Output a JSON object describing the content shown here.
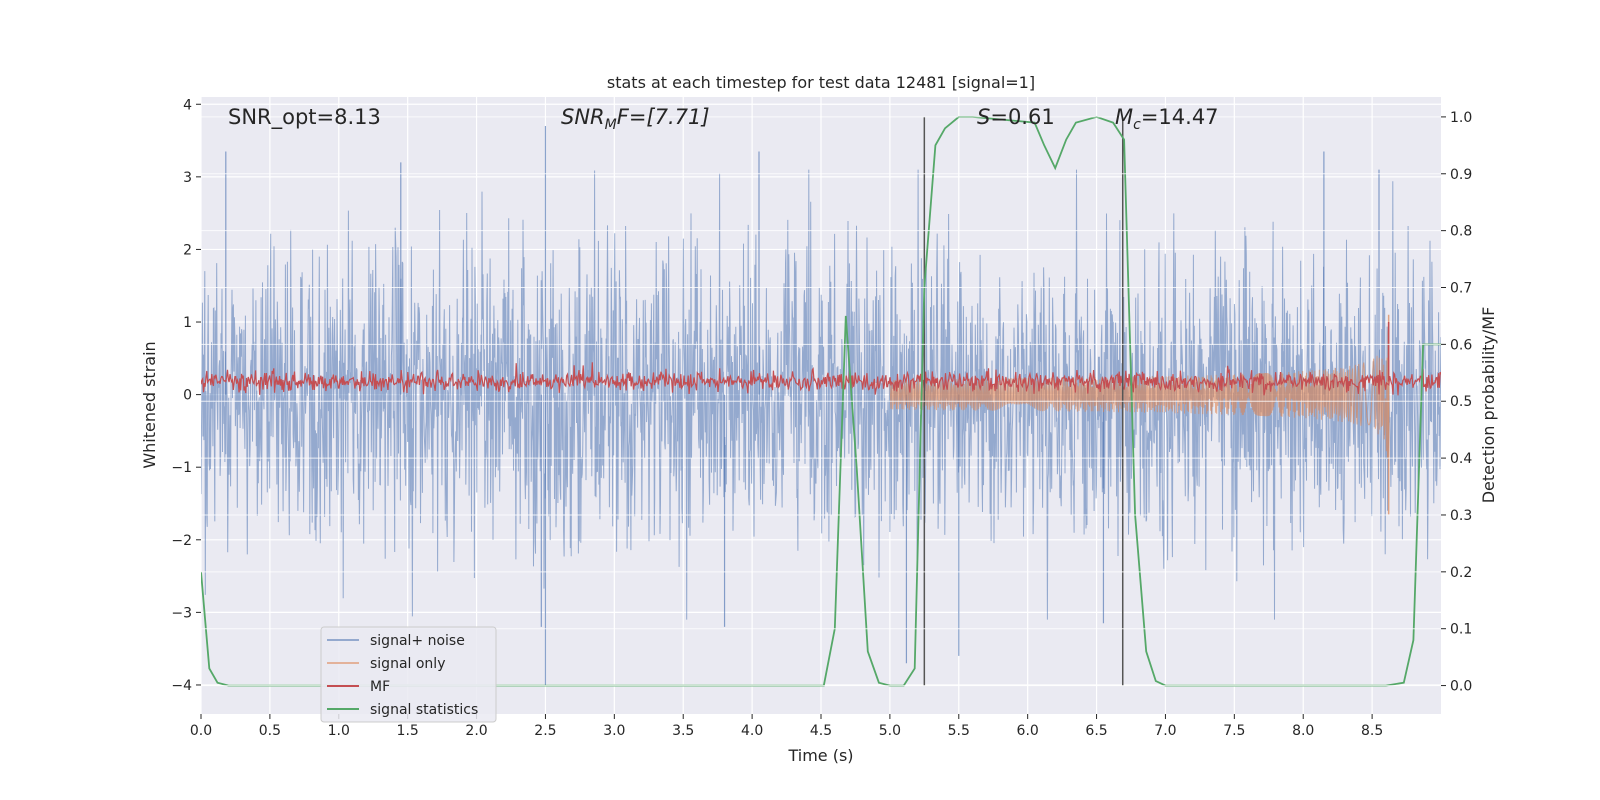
{
  "chart_data": {
    "type": "line",
    "title": "stats at each timestep for test data 12481 [signal=1]",
    "xlabel": "Time (s)",
    "ylabel": "Whitened strain",
    "y2label": "Detection probability/MF",
    "xlim": [
      0.0,
      9.0
    ],
    "ylim": [
      -4.4,
      4.1
    ],
    "y2lim": [
      -0.05,
      1.035
    ],
    "xticks": [
      0.0,
      0.5,
      1.0,
      1.5,
      2.0,
      2.5,
      3.0,
      3.5,
      4.0,
      4.5,
      5.0,
      5.5,
      6.0,
      6.5,
      7.0,
      7.5,
      8.0,
      8.5
    ],
    "xtick_labels": [
      "0.0",
      "0.5",
      "1.0",
      "1.5",
      "2.0",
      "2.5",
      "3.0",
      "3.5",
      "4.0",
      "4.5",
      "5.0",
      "5.5",
      "6.0",
      "6.5",
      "7.0",
      "7.5",
      "8.0",
      "8.5"
    ],
    "yticks": [
      4,
      3,
      2,
      1,
      0,
      -1,
      -2,
      -3,
      -4
    ],
    "ytick_labels": [
      "4",
      "3",
      "2",
      "1",
      "0",
      "−1",
      "−2",
      "−3",
      "−4"
    ],
    "y2ticks": [
      1.0,
      0.9,
      0.8,
      0.7,
      0.6,
      0.5,
      0.4,
      0.3,
      0.2,
      0.1,
      0.0
    ],
    "y2tick_labels": [
      "1.0",
      "0.9",
      "0.8",
      "0.7",
      "0.6",
      "0.5",
      "0.4",
      "0.3",
      "0.2",
      "0.1",
      "0.0"
    ],
    "annotations": {
      "snr_opt": "SNR_opt=8.13",
      "snr_mf_main": "SNR",
      "snr_mf_sub": "M",
      "snr_mf_tail": "F=[7.71]",
      "s_main": "S",
      "s_tail": "=0.61",
      "mc_main": "M",
      "mc_sub": "c",
      "mc_tail": "=14.47"
    },
    "vlines_x": [
      5.25,
      6.69
    ],
    "series": [
      {
        "name": "signal+ noise",
        "axis": "left",
        "color": "#4c72b0",
        "description": "whitened noisy strain, roughly Gaussian noise with std about 1 across 0–9 s",
        "envelope": {
          "x_range": [
            0.0,
            9.0
          ],
          "mean": 0.0,
          "std": 1.0
        },
        "spikes": [
          {
            "x": 0.18,
            "y": 3.35
          },
          {
            "x": 1.45,
            "y": 3.2
          },
          {
            "x": 2.5,
            "y": 3.7
          },
          {
            "x": 2.5,
            "y": -4.0
          },
          {
            "x": 2.47,
            "y": -3.2
          },
          {
            "x": 3.8,
            "y": -3.2
          },
          {
            "x": 4.05,
            "y": 3.35
          },
          {
            "x": 5.12,
            "y": -3.7
          },
          {
            "x": 5.5,
            "y": -3.6
          },
          {
            "x": 6.55,
            "y": -3.15
          },
          {
            "x": 8.15,
            "y": 3.35
          },
          {
            "x": 8.55,
            "y": 3.1
          }
        ]
      },
      {
        "name": "signal only",
        "axis": "left",
        "color": "#dd8452",
        "description": "chirp waveform growing from ~0 to peak near t=8.62 s",
        "chirp": {
          "t_merge": 8.62,
          "peak_amplitude": 1.15,
          "start": 5.0
        }
      },
      {
        "name": "MF",
        "axis": "left",
        "color": "#c44e52",
        "description": "matched filter output band centred near 0.2",
        "band": {
          "mean": 0.18,
          "std": 0.07,
          "peak": {
            "x": 8.62,
            "y": 1.0
          }
        }
      },
      {
        "name": "signal statistics",
        "axis": "right",
        "color": "#55a868",
        "x": [
          0.0,
          0.06,
          0.12,
          0.2,
          0.5,
          0.8,
          1.5,
          2.5,
          3.5,
          4.4,
          4.52,
          4.6,
          4.68,
          4.76,
          4.84,
          4.92,
          5.0,
          5.1,
          5.18,
          5.25,
          5.33,
          5.4,
          5.5,
          5.6,
          6.05,
          6.12,
          6.2,
          6.28,
          6.35,
          6.5,
          6.62,
          6.7,
          6.78,
          6.86,
          6.93,
          7.0,
          8.0,
          8.6,
          8.73,
          8.8,
          8.87,
          8.95,
          9.0
        ],
        "y": [
          0.2,
          0.03,
          0.005,
          0.0,
          0.0,
          0.0,
          0.0,
          0.0,
          0.0,
          0.0,
          0.0,
          0.1,
          0.65,
          0.38,
          0.06,
          0.005,
          0.0,
          0.0,
          0.03,
          0.7,
          0.95,
          0.98,
          1.0,
          1.0,
          0.99,
          0.95,
          0.91,
          0.96,
          0.99,
          1.0,
          0.99,
          0.96,
          0.3,
          0.06,
          0.008,
          0.0,
          0.0,
          0.0,
          0.005,
          0.08,
          0.6,
          0.6,
          0.6
        ]
      }
    ],
    "legend": {
      "placement": "lower-left",
      "entries": [
        "signal+ noise",
        "signal only",
        "MF",
        "signal statistics"
      ]
    }
  },
  "colors": {
    "axes_bg": "#eaeaf2",
    "grid": "#ffffff",
    "noise": "#4c72b0",
    "signal": "#dd8452",
    "mf": "#c44e52",
    "stat": "#55a868",
    "vline": "#555555"
  }
}
